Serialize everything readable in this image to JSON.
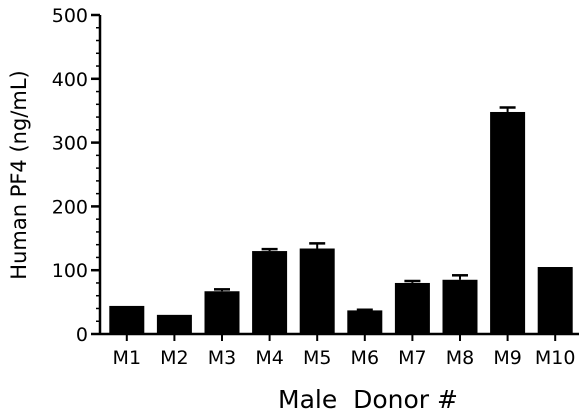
{
  "chart_data": {
    "type": "bar",
    "title": "",
    "xlabel": "Male  Donor #",
    "ylabel": "Human PF4 (ng/mL)",
    "ylim": [
      0,
      500
    ],
    "yticks": [
      0,
      100,
      200,
      300,
      400,
      500
    ],
    "yminor_step": 20,
    "categories": [
      "M1",
      "M2",
      "M3",
      "M4",
      "M5",
      "M6",
      "M7",
      "M8",
      "M9",
      "M10"
    ],
    "values": [
      44,
      30,
      67,
      130,
      134,
      37,
      80,
      85,
      348,
      105
    ],
    "errors": [
      0,
      0,
      3,
      3,
      8,
      1,
      3,
      7,
      7,
      0
    ],
    "bar_color": "#000000",
    "grid": false,
    "legend": "none"
  }
}
